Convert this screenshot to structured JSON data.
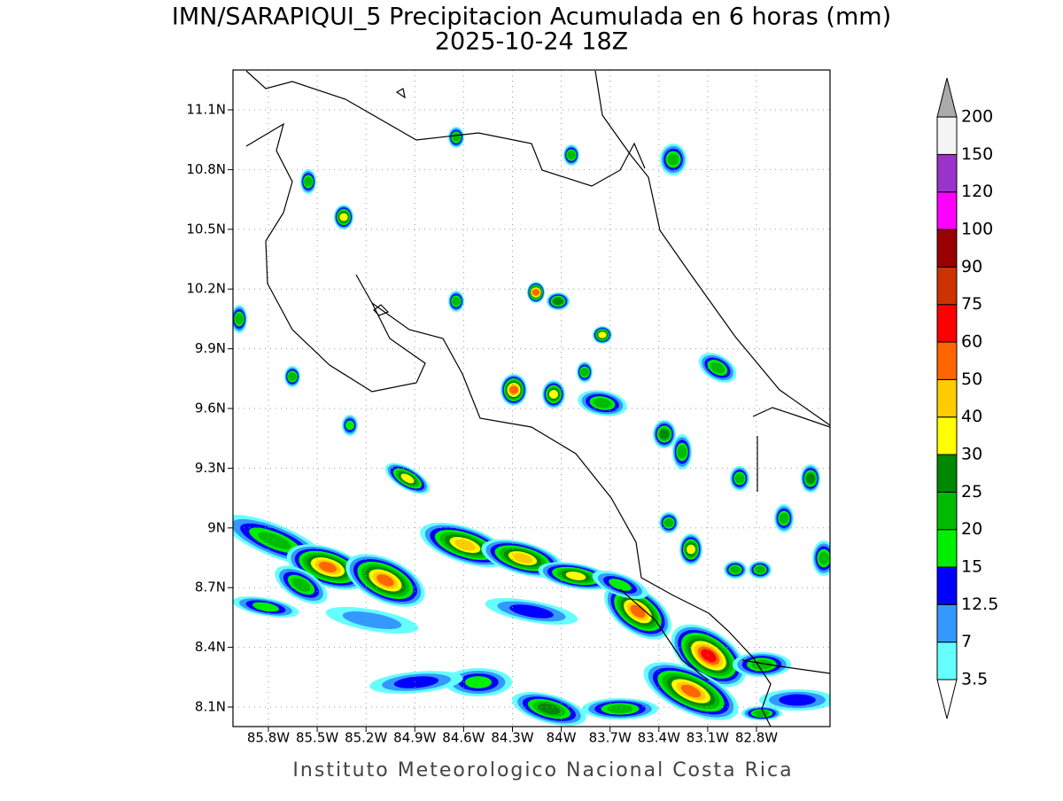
{
  "header": {
    "title": "IMN/SARAPIQUI_5 Precipitacion Acumulada en 6 horas (mm)",
    "subtitle": "2025-10-24 18Z"
  },
  "map": {
    "lon_ticks": [
      "85.8W",
      "85.5W",
      "85.2W",
      "84.9W",
      "84.6W",
      "84.3W",
      "84W",
      "83.7W",
      "83.4W",
      "83.1W",
      "82.8W"
    ],
    "lat_ticks": [
      "11.1N",
      "10.8N",
      "10.5N",
      "10.2N",
      "9.9N",
      "9.6N",
      "9.3N",
      "9N",
      "8.7N",
      "8.4N",
      "8.1N"
    ]
  },
  "colorbar": {
    "labels": [
      "3.5",
      "7",
      "12.5",
      "15",
      "20",
      "25",
      "30",
      "40",
      "50",
      "60",
      "75",
      "90",
      "100",
      "120",
      "150",
      "200"
    ],
    "colors": [
      "#66ffff",
      "#3399ff",
      "#0000ff",
      "#00ee00",
      "#00bb00",
      "#008800",
      "#ffff00",
      "#ffcc00",
      "#ff6600",
      "#ff0000",
      "#cc3300",
      "#990000",
      "#ff00ff",
      "#9933cc",
      "#f4f4f4"
    ],
    "under_color": "#ffffff",
    "over_color": "#aaaaaa"
  },
  "footer": "Instituto Meteorologico Nacional Costa Rica"
}
